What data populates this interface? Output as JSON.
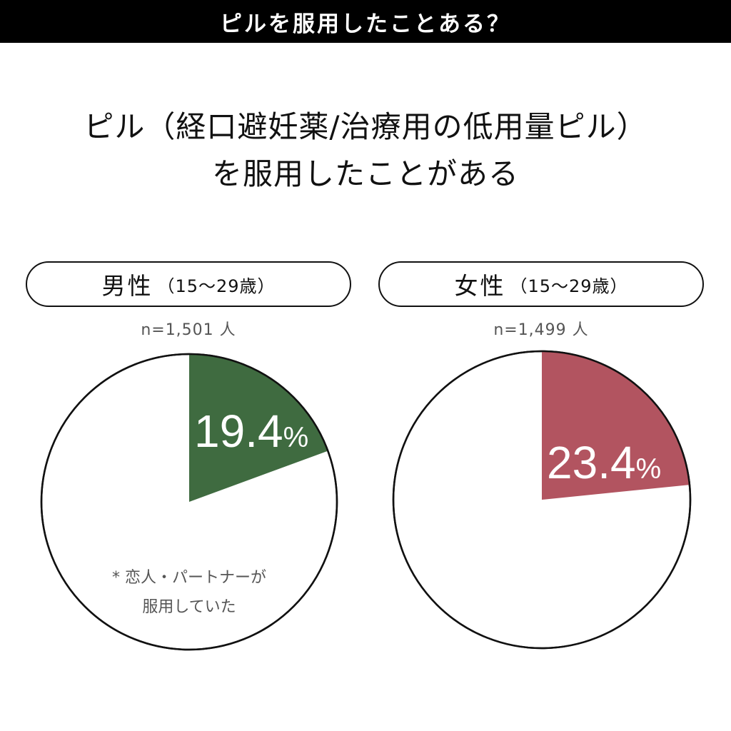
{
  "banner": {
    "title": "ピルを服用したことある？"
  },
  "headline": {
    "line1": "ピル（経口避妊薬/治療用の低用量ピル）",
    "line2": "を服用したことがある"
  },
  "colors": {
    "male": "#3f6b40",
    "female": "#b25460",
    "outline": "#111111",
    "background": "#ffffff",
    "note_text": "#555555"
  },
  "chart_data": [
    {
      "type": "pie",
      "title": "男性",
      "subtitle": "（15～29歳）",
      "sample": "n=1,501 人",
      "value": 19.4,
      "value_label": "19.4",
      "unit": "%",
      "note_line1": "* 恋人・パートナーが",
      "note_line2": "服用していた",
      "color": "#3f6b40"
    },
    {
      "type": "pie",
      "title": "女性",
      "subtitle": "（15～29歳）",
      "sample": "n=1,499 人",
      "value": 23.4,
      "value_label": "23.4",
      "unit": "%",
      "color": "#b25460"
    }
  ]
}
